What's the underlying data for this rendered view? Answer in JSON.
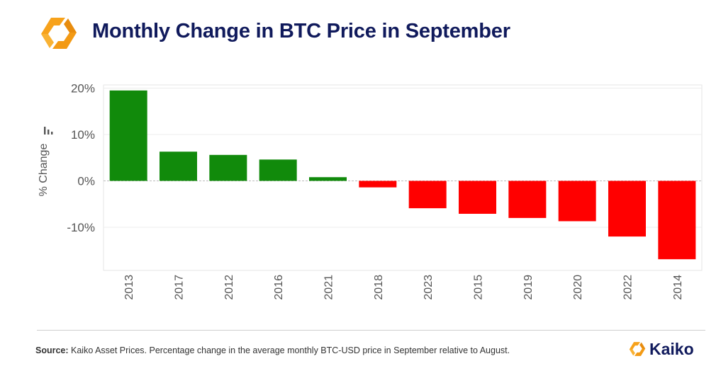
{
  "header": {
    "title": "Monthly Change in BTC Price in September"
  },
  "colors": {
    "positive": "#118a0b",
    "negative": "#ff0000",
    "brand_orange": "#f7a21b",
    "title_navy": "#101a5c"
  },
  "icons": {
    "top_logo": "kaiko-logo-icon",
    "axis_icon": "bar-chart-icon",
    "brand_mark": "kaiko-logo-icon"
  },
  "footer": {
    "source_label": "Source:",
    "source_text": " Kaiko Asset Prices. Percentage change in the average monthly BTC-USD price in September relative to August."
  },
  "brand": {
    "name": "Kaiko"
  },
  "chart_data": {
    "type": "bar",
    "title": "Monthly Change in BTC Price in September",
    "xlabel": "",
    "ylabel": "% Change",
    "categories": [
      "2013",
      "2017",
      "2012",
      "2016",
      "2021",
      "2018",
      "2023",
      "2015",
      "2019",
      "2020",
      "2022",
      "2014"
    ],
    "values": [
      19.5,
      6.3,
      5.6,
      4.6,
      0.8,
      -1.4,
      -5.9,
      -7.1,
      -8.0,
      -8.7,
      -12.0,
      -16.9
    ],
    "ylim": [
      -19.3,
      20.3
    ],
    "yticks": [
      20,
      10,
      0,
      -10
    ],
    "ytick_labels": [
      "20%",
      "10%",
      "0%",
      "-10%"
    ],
    "grid": true,
    "legend": "none"
  }
}
